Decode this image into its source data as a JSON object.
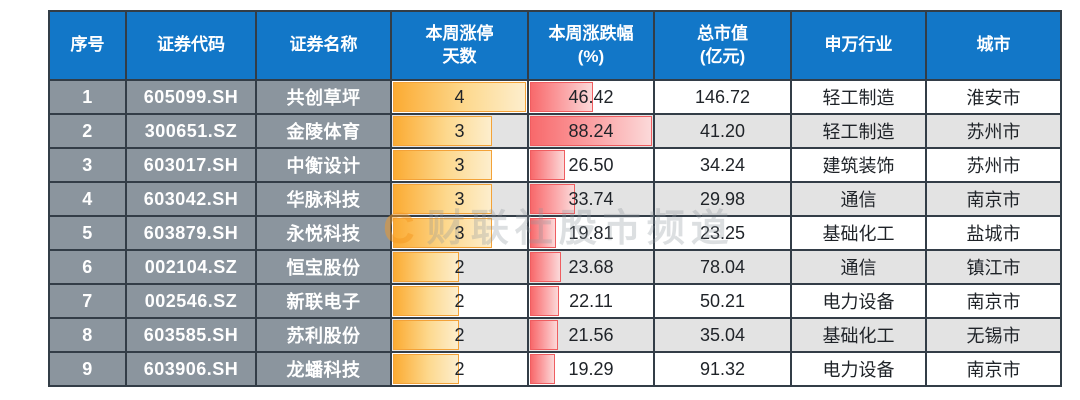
{
  "table": {
    "headers": [
      {
        "id": "index",
        "lines": [
          "序号"
        ]
      },
      {
        "id": "code",
        "lines": [
          "证券代码"
        ]
      },
      {
        "id": "name",
        "lines": [
          "证券名称"
        ]
      },
      {
        "id": "limit_up_days",
        "lines": [
          "本周涨停",
          "天数"
        ]
      },
      {
        "id": "week_change_pct",
        "lines": [
          "本周涨跌幅",
          "(%)"
        ]
      },
      {
        "id": "market_cap",
        "lines": [
          "总市值",
          "(亿元)"
        ]
      },
      {
        "id": "industry",
        "lines": [
          "申万行业"
        ]
      },
      {
        "id": "city",
        "lines": [
          "城市"
        ]
      }
    ],
    "bar_scale": {
      "days_max": 4,
      "change_max": 88.24
    },
    "rows": [
      {
        "index": "1",
        "code": "605099.SH",
        "name": "共创草坪",
        "days": 4,
        "change": 46.42,
        "market_cap": "146.72",
        "industry": "轻工制造",
        "city": "淮安市"
      },
      {
        "index": "2",
        "code": "300651.SZ",
        "name": "金陵体育",
        "days": 3,
        "change": 88.24,
        "market_cap": "41.20",
        "industry": "轻工制造",
        "city": "苏州市"
      },
      {
        "index": "3",
        "code": "603017.SH",
        "name": "中衡设计",
        "days": 3,
        "change": 26.5,
        "market_cap": "34.24",
        "industry": "建筑装饰",
        "city": "苏州市"
      },
      {
        "index": "4",
        "code": "603042.SH",
        "name": "华脉科技",
        "days": 3,
        "change": 33.74,
        "market_cap": "29.98",
        "industry": "通信",
        "city": "南京市"
      },
      {
        "index": "5",
        "code": "603879.SH",
        "name": "永悦科技",
        "days": 3,
        "change": 19.81,
        "market_cap": "23.25",
        "industry": "基础化工",
        "city": "盐城市"
      },
      {
        "index": "6",
        "code": "002104.SZ",
        "name": "恒宝股份",
        "days": 2,
        "change": 23.68,
        "market_cap": "78.04",
        "industry": "通信",
        "city": "镇江市"
      },
      {
        "index": "7",
        "code": "002546.SZ",
        "name": "新联电子",
        "days": 2,
        "change": 22.11,
        "market_cap": "50.21",
        "industry": "电力设备",
        "city": "南京市"
      },
      {
        "index": "8",
        "code": "603585.SH",
        "name": "苏利股份",
        "days": 2,
        "change": 21.56,
        "market_cap": "35.04",
        "industry": "基础化工",
        "city": "无锡市"
      },
      {
        "index": "9",
        "code": "603906.SH",
        "name": "龙蟠科技",
        "days": 2,
        "change": 19.29,
        "market_cap": "91.32",
        "industry": "电力设备",
        "city": "南京市"
      }
    ]
  },
  "watermark": {
    "logo": "C",
    "text": "财联社股市频道"
  },
  "colors": {
    "header_bg": "#1277c8",
    "gray_column_bg": "#8b959e",
    "grid_border": "#333d47",
    "alt_row_bg": "#e3e3e3",
    "days_bar": "#fbab33",
    "change_bar": "#f8696b",
    "watermark_orange": "#f59a23"
  }
}
